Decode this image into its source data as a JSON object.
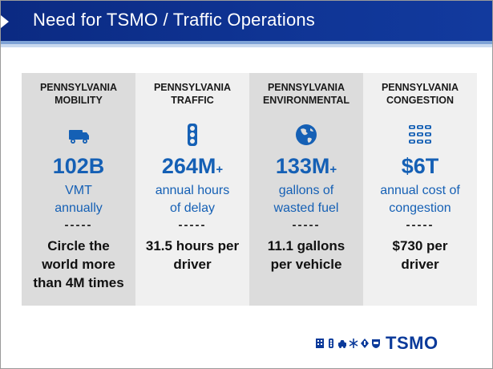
{
  "title": "Need for TSMO / Traffic Operations",
  "columns": [
    {
      "heading_line1": "PENNSYLVANIA",
      "heading_line2": "MOBILITY",
      "icon": "truck-icon",
      "big": "102B",
      "big_suffix": "",
      "sub_line1": "VMT",
      "sub_line2": "annually",
      "divider": "-----",
      "bottom_line1": "Circle the",
      "bottom_line2": "world more",
      "bottom_line3": "than 4M times"
    },
    {
      "heading_line1": "PENNSYLVANIA",
      "heading_line2": "TRAFFIC",
      "icon": "traffic-light-icon",
      "big": "264M",
      "big_suffix": "+",
      "sub_line1": "annual hours",
      "sub_line2": "of delay",
      "divider": "-----",
      "bottom_line1": "31.5 hours per",
      "bottom_line2": "driver",
      "bottom_line3": ""
    },
    {
      "heading_line1": "PENNSYLVANIA",
      "heading_line2": "ENVIRONMENTAL",
      "icon": "globe-icon",
      "big": "133M",
      "big_suffix": "+",
      "sub_line1": "gallons of",
      "sub_line2": "wasted fuel",
      "divider": "-----",
      "bottom_line1": "11.1 gallons",
      "bottom_line2": "per vehicle",
      "bottom_line3": ""
    },
    {
      "heading_line1": "PENNSYLVANIA",
      "heading_line2": "CONGESTION",
      "icon": "congestion-cars-icon",
      "big": "$6T",
      "big_suffix": "",
      "sub_line1": "annual cost of",
      "sub_line2": "congestion",
      "divider": "-----",
      "bottom_line1": "$730 per",
      "bottom_line2": "driver",
      "bottom_line3": ""
    }
  ],
  "footer_logo": "TSMO",
  "colors": {
    "title_bar": "#0f3494",
    "accent_blue": "#1560b5",
    "logo_blue": "#0b3a9a"
  }
}
